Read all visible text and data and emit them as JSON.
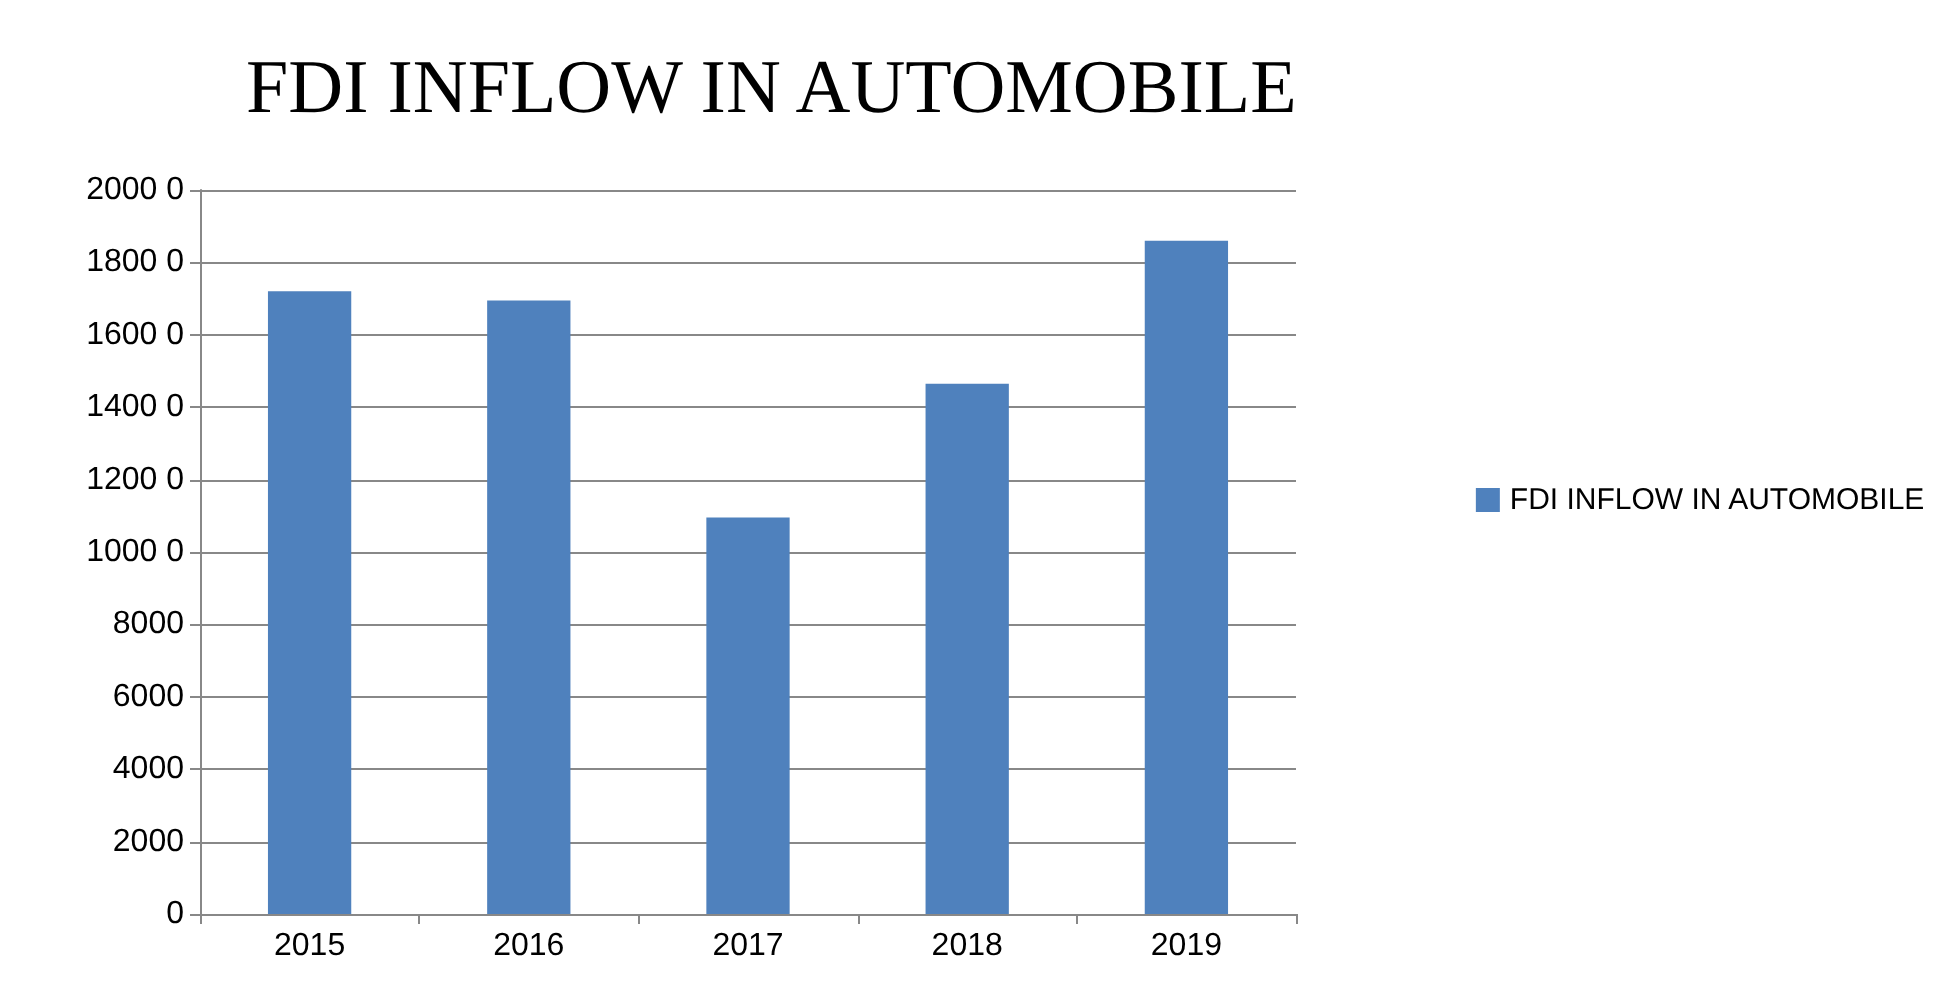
{
  "chart_data": {
    "type": "bar",
    "title": "FDI INFLOW IN AUTOMOBILE",
    "categories": [
      "2015",
      "2016",
      "2017",
      "2018",
      "2019"
    ],
    "series": [
      {
        "name": "FDI INFLOW IN AUTOMOBILE",
        "color": "#4f81bd",
        "values": [
          17200,
          16950,
          10950,
          14650,
          18600
        ]
      }
    ],
    "ylim": [
      0,
      20000
    ],
    "yticks": [
      0,
      2000,
      4000,
      6000,
      8000,
      {
        "value": 10000,
        "label": "1000 0"
      },
      {
        "value": 12000,
        "label": "1200 0"
      },
      {
        "value": 14000,
        "label": "1400 0"
      },
      {
        "value": 16000,
        "label": "1600 0"
      },
      {
        "value": 18000,
        "label": "1800 0"
      },
      {
        "value": 20000,
        "label": "2000 0"
      }
    ],
    "grid": "y",
    "legend": "right"
  }
}
